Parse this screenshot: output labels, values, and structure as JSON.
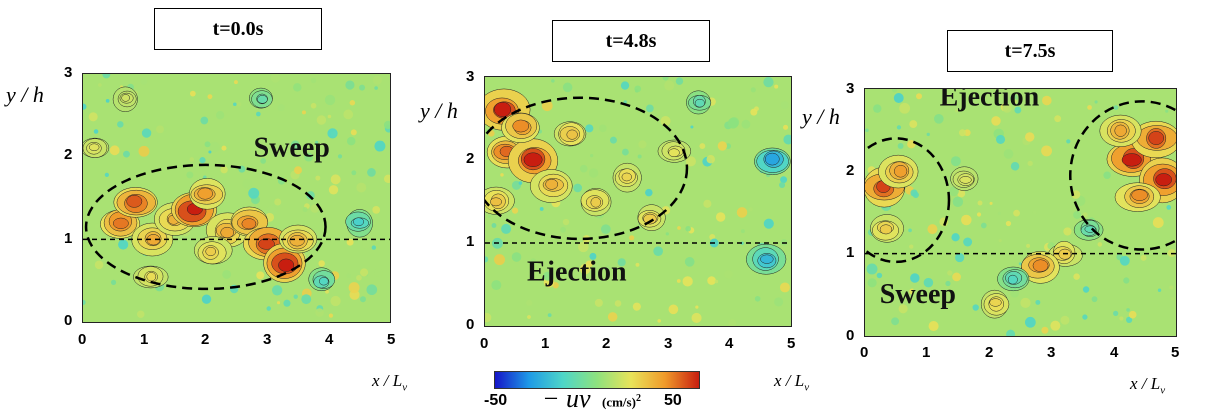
{
  "chart_data": [
    {
      "type": "heatmap",
      "title": "t=0.0s",
      "xlabel": "x / L_v",
      "ylabel": "y / h",
      "xlim": [
        0,
        5
      ],
      "ylim": [
        0,
        3
      ],
      "xticks": [
        "0",
        "1",
        "2",
        "3",
        "4",
        "5"
      ],
      "yticks": [
        "0",
        "1",
        "2",
        "3"
      ],
      "annotations": [
        {
          "text": "Sweep",
          "x": 3.4,
          "y": 2.0
        }
      ],
      "dashed_line_y": 1.0,
      "ellipses": [
        {
          "cx": 2.0,
          "cy": 1.15,
          "rx": 1.95,
          "ry": 0.75
        }
      ],
      "hotspots": [
        {
          "x": 0.6,
          "y": 1.2,
          "v": 38
        },
        {
          "x": 0.85,
          "y": 1.45,
          "v": 42
        },
        {
          "x": 1.15,
          "y": 1.0,
          "v": 30
        },
        {
          "x": 1.5,
          "y": 1.25,
          "v": 28
        },
        {
          "x": 1.8,
          "y": 1.35,
          "v": 50
        },
        {
          "x": 2.0,
          "y": 1.55,
          "v": 32
        },
        {
          "x": 2.35,
          "y": 1.1,
          "v": 30
        },
        {
          "x": 2.7,
          "y": 1.2,
          "v": 36
        },
        {
          "x": 3.0,
          "y": 0.95,
          "v": 45
        },
        {
          "x": 3.3,
          "y": 0.7,
          "v": 50
        },
        {
          "x": 3.5,
          "y": 1.0,
          "v": 28
        },
        {
          "x": 1.1,
          "y": 0.55,
          "v": 18
        },
        {
          "x": 2.1,
          "y": 0.85,
          "v": 22
        },
        {
          "x": 0.2,
          "y": 2.1,
          "v": 15
        },
        {
          "x": 0.7,
          "y": 2.7,
          "v": 12
        },
        {
          "x": 4.5,
          "y": 1.2,
          "v": -18
        },
        {
          "x": 3.9,
          "y": 0.5,
          "v": -15
        },
        {
          "x": 2.9,
          "y": 2.7,
          "v": -10
        }
      ]
    },
    {
      "type": "heatmap",
      "title": "t=4.8s",
      "xlabel": "x / L_v",
      "ylabel": "y / h",
      "xlim": [
        0,
        5
      ],
      "ylim": [
        0,
        3
      ],
      "xticks": [
        "0",
        "1",
        "2",
        "3",
        "4",
        "5"
      ],
      "yticks": [
        "0",
        "1",
        "2",
        "3"
      ],
      "annotations": [
        {
          "text": "Ejection",
          "x": 1.5,
          "y": 0.55
        }
      ],
      "dashed_line_y": 1.0,
      "ellipses": [
        {
          "cx": 1.55,
          "cy": 1.9,
          "rx": 1.75,
          "ry": 0.85
        }
      ],
      "hotspots": [
        {
          "x": 0.3,
          "y": 2.6,
          "v": 50
        },
        {
          "x": 0.35,
          "y": 2.1,
          "v": 40
        },
        {
          "x": 0.8,
          "y": 2.0,
          "v": 50
        },
        {
          "x": 0.6,
          "y": 2.4,
          "v": 35
        },
        {
          "x": 1.1,
          "y": 1.7,
          "v": 28
        },
        {
          "x": 1.4,
          "y": 2.3,
          "v": 24
        },
        {
          "x": 0.2,
          "y": 1.5,
          "v": 25
        },
        {
          "x": 1.8,
          "y": 1.5,
          "v": 22
        },
        {
          "x": 2.3,
          "y": 1.8,
          "v": 20
        },
        {
          "x": 2.7,
          "y": 1.3,
          "v": 22
        },
        {
          "x": 3.1,
          "y": 2.1,
          "v": 16
        },
        {
          "x": 4.7,
          "y": 2.0,
          "v": -30
        },
        {
          "x": 4.6,
          "y": 0.8,
          "v": -25
        },
        {
          "x": 3.5,
          "y": 2.7,
          "v": -12
        }
      ]
    },
    {
      "type": "heatmap",
      "title": "t=7.5s",
      "xlabel": "x / L_v",
      "ylabel": "y / h",
      "xlim": [
        0,
        5
      ],
      "ylim": [
        0,
        3
      ],
      "xticks": [
        "0",
        "1",
        "2",
        "3",
        "4",
        "5"
      ],
      "yticks": [
        "0",
        "1",
        "2",
        "3"
      ],
      "annotations": [
        {
          "text": "Ejection",
          "x": 2.0,
          "y": 2.8
        },
        {
          "text": "Sweep",
          "x": 0.85,
          "y": 0.4
        }
      ],
      "dashed_line_y": 1.0,
      "ellipses": [
        {
          "cx": 0.5,
          "cy": 1.65,
          "rx": 0.85,
          "ry": 0.75
        },
        {
          "cx": 4.45,
          "cy": 1.95,
          "rx": 1.15,
          "ry": 0.9
        }
      ],
      "hotspots": [
        {
          "x": 0.3,
          "y": 1.8,
          "v": 45
        },
        {
          "x": 0.55,
          "y": 2.0,
          "v": 32
        },
        {
          "x": 0.35,
          "y": 1.3,
          "v": 22
        },
        {
          "x": 4.3,
          "y": 2.15,
          "v": 50
        },
        {
          "x": 4.7,
          "y": 2.4,
          "v": 45
        },
        {
          "x": 4.8,
          "y": 1.9,
          "v": 50
        },
        {
          "x": 4.4,
          "y": 1.7,
          "v": 35
        },
        {
          "x": 4.1,
          "y": 2.5,
          "v": 30
        },
        {
          "x": 3.2,
          "y": 1.0,
          "v": 22
        },
        {
          "x": 2.8,
          "y": 0.85,
          "v": 35
        },
        {
          "x": 2.1,
          "y": 0.4,
          "v": 20
        },
        {
          "x": 1.6,
          "y": 1.9,
          "v": 14
        },
        {
          "x": 2.4,
          "y": 0.7,
          "v": -15
        },
        {
          "x": 3.6,
          "y": 1.3,
          "v": -12
        }
      ]
    }
  ],
  "colorbar": {
    "min_label": "-50",
    "max_label": "50",
    "quantity": "− uv",
    "unit": "(cm/s)",
    "unit_exp": "2",
    "colors": [
      "#1515c8",
      "#1e9ae6",
      "#4ed6c8",
      "#8ee27e",
      "#e8e35a",
      "#f09a2a",
      "#c81e10"
    ]
  },
  "colors": {
    "background": "#8fd98c",
    "ellipse": "#000000",
    "dashed": "#000000"
  }
}
